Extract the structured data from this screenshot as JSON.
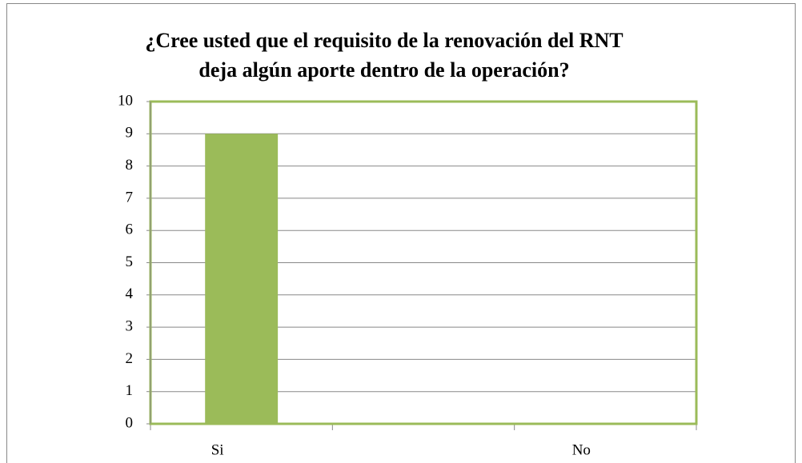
{
  "chart_data": {
    "type": "bar",
    "title": [
      "¿Cree usted que el requisito de la renovación del RNT",
      "deja algún aporte dentro de la operación?"
    ],
    "categories": [
      "Si",
      null,
      "No"
    ],
    "values": [
      9,
      null,
      0
    ],
    "color": "#9bbb59",
    "ylim": [
      0,
      10
    ],
    "yticks": [
      0,
      1,
      2,
      3,
      4,
      5,
      6,
      7,
      8,
      9,
      10
    ],
    "grid": true
  }
}
